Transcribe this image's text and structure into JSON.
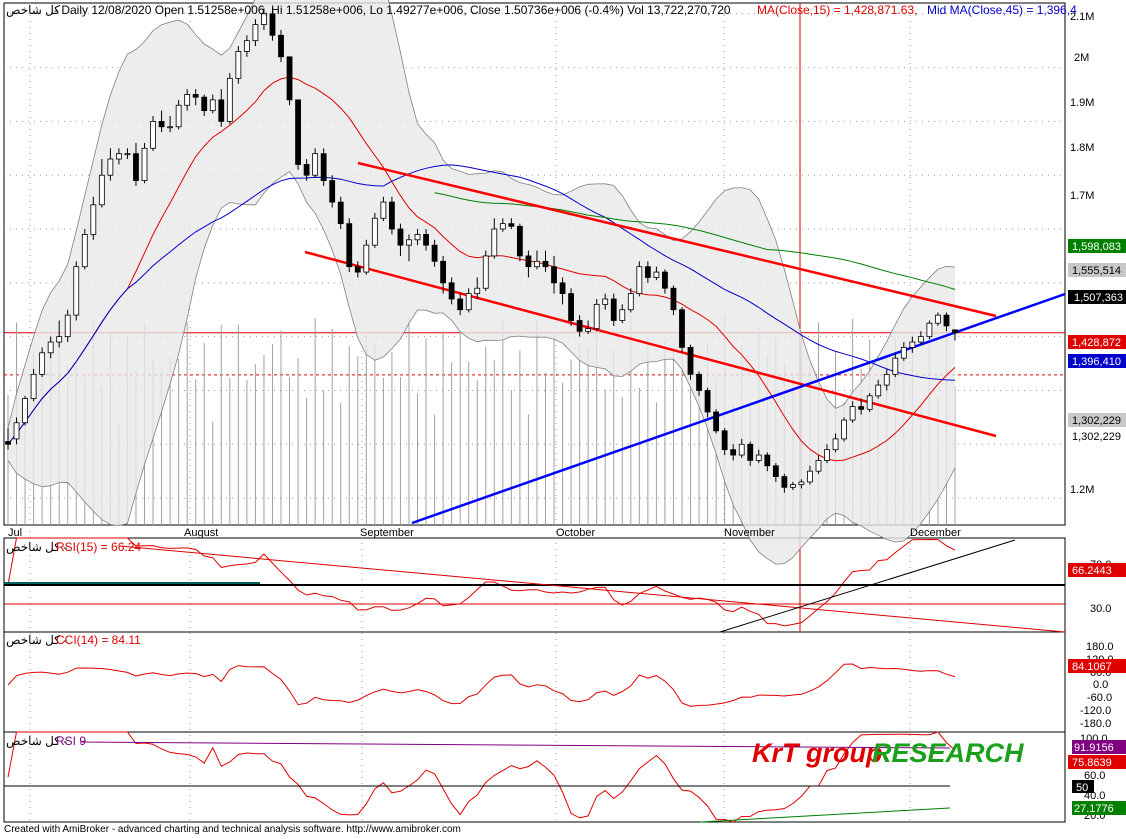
{
  "header": {
    "symbol": "كل شاخص",
    "ohlc_text": "- Daily 12/08/2020 Open 1.51258e+006, Hi 1.51258e+006, Lo 1.49277e+006, Close 1.50736e+006 (-0.4%) Vol 13,722,270,720",
    "ma15_text": "MA(Close,15) = 1,428,871.63,",
    "ma45_text": "Mid MA(Close,45) = 1,396,4"
  },
  "panes": {
    "rsi15": {
      "symbol": "كل شاخص -",
      "label": "RSI(15) = 66.24",
      "value_tag": "66.2443",
      "ticks": [
        "70.0",
        "30.0"
      ]
    },
    "cci14": {
      "symbol": "كل شاخص -",
      "label": "CCI(14) = 84.11",
      "value_tag": "84.1067",
      "ticks": [
        "180.0",
        "120.0",
        "60.0",
        "0.0",
        "-60.0",
        "-120.0",
        "-180.0"
      ]
    },
    "rsi9": {
      "symbol": "كل شاخص -",
      "label": "RSI 9",
      "tags": [
        "91.9156",
        "75.8639",
        "50",
        "27.1776"
      ],
      "ticks": [
        "100.0",
        "60.0",
        "40.0",
        "20.0"
      ]
    }
  },
  "price_axis": {
    "ticks": [
      "2.1M",
      "2M",
      "1.9M",
      "1.8M",
      "1.7M",
      "1.6M",
      "1.5M",
      "1.4M",
      "1.3M",
      "1.2M"
    ],
    "tags": [
      "1,598,083",
      "1,555,514",
      "1,507,363",
      "1,428,872",
      "1,396,410",
      "1,302,229",
      "1,302,229"
    ]
  },
  "months": [
    "Jul",
    "August",
    "September",
    "October",
    "November",
    "December"
  ],
  "watermark": {
    "part1": "KrT group",
    "part2": "RESEARCH"
  },
  "footer": "Created with AmiBroker - advanced charting and technical analysis software. http://www.amibroker.com",
  "colors": {
    "up": "#ffffff",
    "down": "#000000",
    "ma15": "#e00000",
    "ma45": "#0000cc",
    "ma_long": "#008000",
    "channel": "#ff0000",
    "trendline": "#0000ff",
    "bands": "#e8e8e8",
    "volume": "#a0a0a0"
  },
  "chart_data": {
    "type": "candlestick",
    "y_unit": "price",
    "ylim": [
      1150000,
      2120000
    ],
    "candles": [
      [
        1305000,
        1330000,
        1290000,
        1300000
      ],
      [
        1310000,
        1350000,
        1300000,
        1340000
      ],
      [
        1340000,
        1390000,
        1335000,
        1385000
      ],
      [
        1385000,
        1440000,
        1380000,
        1430000
      ],
      [
        1430000,
        1480000,
        1425000,
        1470000
      ],
      [
        1470000,
        1500000,
        1460000,
        1490000
      ],
      [
        1490000,
        1530000,
        1480000,
        1500000
      ],
      [
        1500000,
        1550000,
        1490000,
        1540000
      ],
      [
        1540000,
        1640000,
        1530000,
        1630000
      ],
      [
        1630000,
        1700000,
        1625000,
        1690000
      ],
      [
        1690000,
        1760000,
        1680000,
        1745000
      ],
      [
        1745000,
        1830000,
        1740000,
        1800000
      ],
      [
        1800000,
        1850000,
        1790000,
        1830000
      ],
      [
        1830000,
        1850000,
        1820000,
        1840000
      ],
      [
        1840000,
        1850000,
        1830000,
        1840000
      ],
      [
        1840000,
        1860000,
        1780000,
        1790000
      ],
      [
        1790000,
        1860000,
        1785000,
        1850000
      ],
      [
        1850000,
        1910000,
        1845000,
        1900000
      ],
      [
        1900000,
        1920000,
        1880000,
        1890000
      ],
      [
        1890000,
        1910000,
        1880000,
        1890000
      ],
      [
        1890000,
        1940000,
        1885000,
        1930000
      ],
      [
        1930000,
        1960000,
        1920000,
        1950000
      ],
      [
        1950000,
        1960000,
        1930000,
        1945000
      ],
      [
        1945000,
        1950000,
        1910000,
        1920000
      ],
      [
        1920000,
        1950000,
        1915000,
        1940000
      ],
      [
        1940000,
        1960000,
        1890000,
        1900000
      ],
      [
        1900000,
        1990000,
        1895000,
        1980000
      ],
      [
        1980000,
        2040000,
        1970000,
        2030000
      ],
      [
        2030000,
        2060000,
        2020000,
        2050000
      ],
      [
        2050000,
        2090000,
        2040000,
        2080000
      ],
      [
        2080000,
        2110000,
        2070000,
        2100000
      ],
      [
        2100000,
        2110000,
        2050000,
        2060000
      ],
      [
        2060000,
        2070000,
        2010000,
        2020000
      ],
      [
        2020000,
        2020000,
        1930000,
        1940000
      ],
      [
        1940000,
        1940000,
        1810000,
        1820000
      ],
      [
        1820000,
        1830000,
        1790000,
        1800000
      ],
      [
        1800000,
        1850000,
        1795000,
        1840000
      ],
      [
        1840000,
        1850000,
        1780000,
        1790000
      ],
      [
        1790000,
        1800000,
        1740000,
        1750000
      ],
      [
        1750000,
        1760000,
        1700000,
        1710000
      ],
      [
        1710000,
        1720000,
        1620000,
        1630000
      ],
      [
        1630000,
        1640000,
        1610000,
        1620000
      ],
      [
        1620000,
        1680000,
        1615000,
        1670000
      ],
      [
        1670000,
        1730000,
        1665000,
        1720000
      ],
      [
        1720000,
        1760000,
        1715000,
        1750000
      ],
      [
        1750000,
        1760000,
        1690000,
        1700000
      ],
      [
        1700000,
        1710000,
        1650000,
        1670000
      ],
      [
        1670000,
        1690000,
        1640000,
        1680000
      ],
      [
        1680000,
        1700000,
        1670000,
        1690000
      ],
      [
        1690000,
        1700000,
        1660000,
        1670000
      ],
      [
        1670000,
        1680000,
        1630000,
        1640000
      ],
      [
        1640000,
        1650000,
        1580000,
        1600000
      ],
      [
        1600000,
        1610000,
        1560000,
        1570000
      ],
      [
        1570000,
        1580000,
        1540000,
        1550000
      ],
      [
        1550000,
        1590000,
        1545000,
        1580000
      ],
      [
        1580000,
        1610000,
        1570000,
        1590000
      ],
      [
        1590000,
        1660000,
        1585000,
        1650000
      ],
      [
        1650000,
        1720000,
        1645000,
        1700000
      ],
      [
        1700000,
        1720000,
        1695000,
        1710000
      ],
      [
        1710000,
        1720000,
        1700000,
        1705000
      ],
      [
        1705000,
        1710000,
        1640000,
        1650000
      ],
      [
        1650000,
        1660000,
        1610000,
        1630000
      ],
      [
        1630000,
        1660000,
        1625000,
        1640000
      ],
      [
        1640000,
        1660000,
        1620000,
        1630000
      ],
      [
        1630000,
        1650000,
        1580000,
        1600000
      ],
      [
        1600000,
        1610000,
        1560000,
        1580000
      ],
      [
        1580000,
        1590000,
        1520000,
        1530000
      ],
      [
        1530000,
        1540000,
        1500000,
        1510000
      ],
      [
        1510000,
        1530000,
        1505000,
        1515000
      ],
      [
        1515000,
        1570000,
        1510000,
        1560000
      ],
      [
        1560000,
        1580000,
        1550000,
        1570000
      ],
      [
        1570000,
        1580000,
        1520000,
        1530000
      ],
      [
        1530000,
        1560000,
        1525000,
        1550000
      ],
      [
        1550000,
        1590000,
        1545000,
        1580000
      ],
      [
        1580000,
        1640000,
        1575000,
        1630000
      ],
      [
        1630000,
        1640000,
        1600000,
        1610000
      ],
      [
        1610000,
        1630000,
        1605000,
        1620000
      ],
      [
        1620000,
        1625000,
        1580000,
        1590000
      ],
      [
        1590000,
        1595000,
        1540000,
        1550000
      ],
      [
        1550000,
        1555000,
        1470000,
        1480000
      ],
      [
        1480000,
        1485000,
        1420000,
        1430000
      ],
      [
        1430000,
        1435000,
        1390000,
        1400000
      ],
      [
        1400000,
        1405000,
        1350000,
        1360000
      ],
      [
        1360000,
        1365000,
        1320000,
        1325000
      ],
      [
        1325000,
        1330000,
        1280000,
        1290000
      ],
      [
        1290000,
        1300000,
        1270000,
        1280000
      ],
      [
        1280000,
        1310000,
        1275000,
        1300000
      ],
      [
        1300000,
        1305000,
        1260000,
        1270000
      ],
      [
        1270000,
        1290000,
        1265000,
        1280000
      ],
      [
        1280000,
        1285000,
        1250000,
        1260000
      ],
      [
        1260000,
        1265000,
        1230000,
        1240000
      ],
      [
        1240000,
        1245000,
        1210000,
        1220000
      ],
      [
        1220000,
        1230000,
        1215000,
        1225000
      ],
      [
        1225000,
        1235000,
        1218000,
        1230000
      ],
      [
        1230000,
        1260000,
        1225000,
        1250000
      ],
      [
        1250000,
        1280000,
        1245000,
        1270000
      ],
      [
        1270000,
        1300000,
        1265000,
        1290000
      ],
      [
        1290000,
        1320000,
        1285000,
        1310000
      ],
      [
        1310000,
        1350000,
        1305000,
        1345000
      ],
      [
        1345000,
        1380000,
        1340000,
        1370000
      ],
      [
        1370000,
        1385000,
        1355000,
        1365000
      ],
      [
        1365000,
        1395000,
        1360000,
        1390000
      ],
      [
        1390000,
        1420000,
        1385000,
        1410000
      ],
      [
        1410000,
        1440000,
        1400000,
        1430000
      ],
      [
        1430000,
        1470000,
        1425000,
        1460000
      ],
      [
        1460000,
        1490000,
        1455000,
        1480000
      ],
      [
        1480000,
        1500000,
        1470000,
        1490000
      ],
      [
        1490000,
        1510000,
        1485000,
        1500000
      ],
      [
        1500000,
        1530000,
        1495000,
        1525000
      ],
      [
        1525000,
        1545000,
        1520000,
        1540000
      ],
      [
        1540000,
        1545000,
        1510000,
        1520000
      ],
      [
        1512580,
        1512580,
        1492770,
        1507360
      ]
    ]
  }
}
